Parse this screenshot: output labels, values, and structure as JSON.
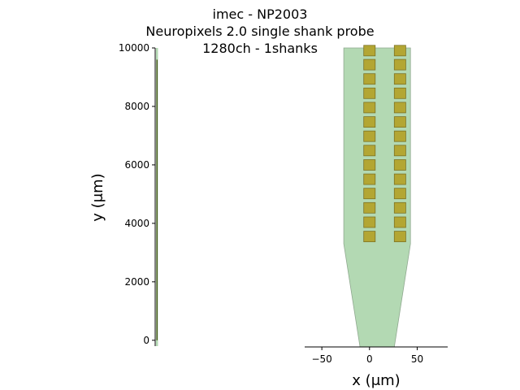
{
  "chart_data": [
    {
      "type": "scatter",
      "panel": "overview",
      "title_lines": [
        "imec - NP2003",
        "Neuropixels 2.0 single shank probe",
        "1280ch - 1shanks"
      ],
      "ylabel": "y (μm)",
      "yticks": [
        0,
        2000,
        4000,
        6000,
        8000,
        10000
      ],
      "ylim": [
        -200,
        10000
      ],
      "shank_x_um": [
        -35,
        35
      ],
      "contact_y_range_um": [
        0,
        9600
      ],
      "grid": false
    },
    {
      "type": "scatter",
      "panel": "zoomed-tip",
      "xlabel": "x (μm)",
      "xticks": [
        -50,
        0,
        50
      ],
      "xlim": [
        -68,
        82
      ],
      "ylim": [
        -230,
        10000
      ],
      "probe_contour_um": [
        [
          -27,
          10000
        ],
        [
          -27,
          3300
        ],
        [
          -10,
          -230
        ],
        [
          26,
          -230
        ],
        [
          43,
          3300
        ],
        [
          43,
          10000
        ]
      ],
      "contact_size_um": 12,
      "contact_columns_um": [
        0,
        32
      ],
      "contact_rows_um": [
        9950,
        9470,
        8980,
        8490,
        8000,
        7510,
        7020,
        6530,
        6040,
        5550,
        5060,
        4570,
        4080,
        3590
      ],
      "colors": {
        "probe": "#b3d9b3",
        "probe_edge": "#8fa88f",
        "contact": "#b3a633",
        "contact_edge": "#7d7325"
      },
      "grid": false
    }
  ]
}
